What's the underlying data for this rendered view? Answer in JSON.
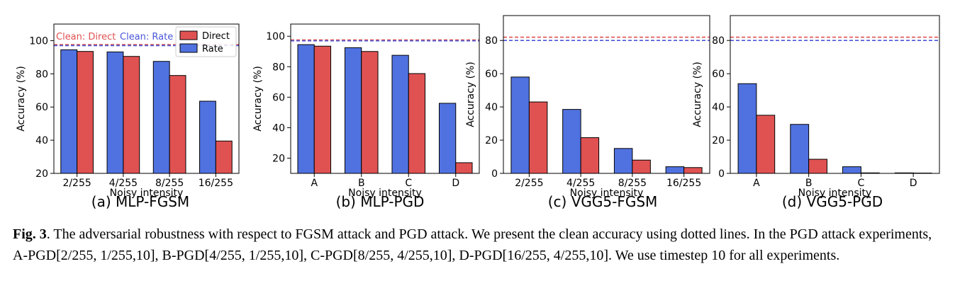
{
  "colors": {
    "direct": "#e05252",
    "rate": "#5072e0",
    "clean_direct": "#e05252",
    "clean_rate": "#4a56d8"
  },
  "chart_data": [
    {
      "type": "bar",
      "subcaption": "(a) MLP-FGSM",
      "xlabel": "Noisy intensity",
      "ylabel": "Accuracy (%)",
      "categories": [
        "2/255",
        "4/255",
        "8/255",
        "16/255"
      ],
      "ylim": [
        20,
        110
      ],
      "yticks": [
        20,
        40,
        60,
        80,
        100
      ],
      "series": [
        {
          "name": "Rate",
          "values": [
            94.5,
            93.2,
            87.5,
            63.5
          ]
        },
        {
          "name": "Direct",
          "values": [
            93.5,
            90.5,
            79.0,
            39.5
          ]
        }
      ],
      "clean": {
        "direct": 97.6,
        "rate": 97.0
      },
      "clean_labels": {
        "direct": "Clean: Direct",
        "rate": "Clean: Rate"
      },
      "legend": "top-right"
    },
    {
      "type": "bar",
      "subcaption": "(b) MLP-PGD",
      "xlabel": "Noisy intensity",
      "ylabel": "Accuracy (%)",
      "categories": [
        "A",
        "B",
        "C",
        "D"
      ],
      "ylim": [
        10,
        108
      ],
      "yticks": [
        20,
        40,
        60,
        80,
        100
      ],
      "series": [
        {
          "name": "Rate",
          "values": [
            94.5,
            92.5,
            87.5,
            56.0
          ]
        },
        {
          "name": "Direct",
          "values": [
            93.5,
            90.0,
            75.5,
            17.0
          ]
        }
      ],
      "clean": {
        "direct": 97.6,
        "rate": 97.0
      }
    },
    {
      "type": "bar",
      "subcaption": "(c) VGG5-FGSM",
      "xlabel": "Noisy intensity",
      "ylabel": "Accuracy (%)",
      "categories": [
        "2/255",
        "4/255",
        "8/255",
        "16/255"
      ],
      "ylim": [
        0,
        95
      ],
      "yticks": [
        0,
        20,
        40,
        60,
        80
      ],
      "series": [
        {
          "name": "Rate",
          "values": [
            58.0,
            38.5,
            15.0,
            4.0
          ]
        },
        {
          "name": "Direct",
          "values": [
            43.0,
            21.5,
            8.0,
            3.5
          ]
        }
      ],
      "clean": {
        "direct": 82.0,
        "rate": 80.0
      }
    },
    {
      "type": "bar",
      "subcaption": "(d) VGG5-PGD",
      "xlabel": "Noisy intensity",
      "ylabel": "Accuracy (%)",
      "categories": [
        "A",
        "B",
        "C",
        "D"
      ],
      "ylim": [
        0,
        95
      ],
      "yticks": [
        0,
        20,
        40,
        60,
        80
      ],
      "series": [
        {
          "name": "Rate",
          "values": [
            54.0,
            29.5,
            4.0,
            0.3
          ]
        },
        {
          "name": "Direct",
          "values": [
            35.0,
            8.5,
            0.3,
            0.2
          ]
        }
      ],
      "clean": {
        "direct": 82.0,
        "rate": 80.0
      }
    }
  ],
  "caption": {
    "label": "Fig. 3",
    "text": ". The adversarial robustness with respect to FGSM attack and PGD attack. We present the clean accuracy using dotted lines. In the PGD attack experiments, A-PGD[2/255, 1/255,10], B-PGD[4/255, 1/255,10], C-PGD[8/255, 4/255,10], D-PGD[16/255, 4/255,10]. We use timestep 10 for all experiments."
  }
}
